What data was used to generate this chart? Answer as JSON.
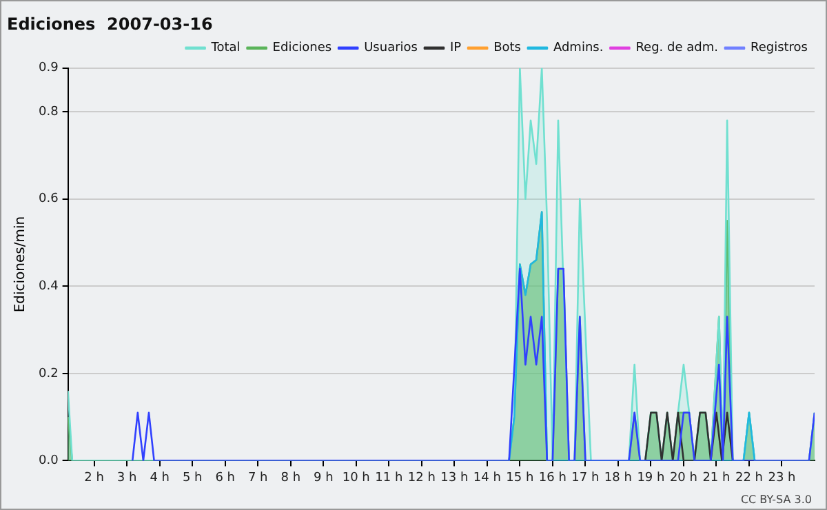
{
  "chart_data": {
    "type": "line",
    "title": "Ediciones  2007-03-16",
    "ylabel": "Ediciones/min",
    "xlim": [
      1.2,
      24
    ],
    "xticks": [
      {
        "value": 2,
        "label": "2 h"
      },
      {
        "value": 3,
        "label": "3 h"
      },
      {
        "value": 4,
        "label": "4 h"
      },
      {
        "value": 5,
        "label": "5 h"
      },
      {
        "value": 6,
        "label": "6 h"
      },
      {
        "value": 7,
        "label": "7 h"
      },
      {
        "value": 8,
        "label": "8 h"
      },
      {
        "value": 9,
        "label": "9 h"
      },
      {
        "value": 10,
        "label": "10 h"
      },
      {
        "value": 11,
        "label": "11 h"
      },
      {
        "value": 12,
        "label": "12 h"
      },
      {
        "value": 13,
        "label": "13 h"
      },
      {
        "value": 14,
        "label": "14 h"
      },
      {
        "value": 15,
        "label": "15 h"
      },
      {
        "value": 16,
        "label": "16 h"
      },
      {
        "value": 17,
        "label": "17 h"
      },
      {
        "value": 18,
        "label": "18 h"
      },
      {
        "value": 19,
        "label": "19 h"
      },
      {
        "value": 20,
        "label": "20 h"
      },
      {
        "value": 21,
        "label": "21 h"
      },
      {
        "value": 22,
        "label": "22 h"
      },
      {
        "value": 23,
        "label": "23 h"
      }
    ],
    "ylim": [
      0,
      0.9
    ],
    "yticks": [
      {
        "value": 0,
        "label": "0.0"
      },
      0.2,
      0.4,
      0.6,
      0.8,
      0.9
    ],
    "grid": "y",
    "legend": "top right",
    "marker": "none",
    "line_style": "solid",
    "annotations": [
      "CC BY-SA 3.0"
    ],
    "series": [
      {
        "name": "Total",
        "type": "area",
        "color": "#70e0d0",
        "x": [
          1.2,
          1.33,
          14.67,
          14.83,
          15.0,
          15.17,
          15.33,
          15.5,
          15.67,
          15.83,
          16.0,
          16.17,
          16.5,
          16.67,
          16.83,
          17.17,
          18.33,
          18.5,
          18.67,
          18.83,
          19.0,
          19.17,
          19.33,
          19.5,
          19.67,
          19.83,
          20.0,
          20.17,
          20.33,
          20.5,
          20.67,
          20.83,
          21.08,
          21.2,
          21.33,
          21.5,
          21.83,
          22.0,
          22.17,
          23.83,
          24.0
        ],
        "values": [
          0.16,
          0,
          0,
          0.1,
          0.9,
          0.6,
          0.78,
          0.68,
          0.9,
          0.55,
          0,
          0.78,
          0,
          0,
          0.6,
          0,
          0,
          0.22,
          0,
          0,
          0.11,
          0.11,
          0,
          0.11,
          0,
          0.11,
          0.22,
          0.11,
          0,
          0.11,
          0.11,
          0,
          0.33,
          0,
          0.78,
          0,
          0,
          0.11,
          0,
          0,
          0.11
        ]
      },
      {
        "name": "Ediciones",
        "type": "area",
        "color": "#5ab45a",
        "x": [
          1.2,
          1.33,
          14.67,
          14.83,
          15.0,
          15.17,
          15.33,
          15.5,
          15.67,
          15.83,
          16.0,
          16.17,
          16.33,
          16.5,
          16.67,
          16.83,
          17.0,
          18.33,
          18.5,
          18.67,
          18.83,
          19.0,
          19.17,
          19.33,
          19.5,
          19.67,
          19.83,
          20.0,
          20.17,
          20.33,
          20.5,
          20.67,
          20.83,
          21.08,
          21.2,
          21.33,
          21.5,
          21.83,
          22.0,
          22.17,
          23.83,
          24.0
        ],
        "values": [
          0.1,
          0,
          0,
          0.1,
          0.45,
          0.38,
          0.45,
          0.46,
          0.57,
          0,
          0,
          0.44,
          0.44,
          0,
          0,
          0.33,
          0,
          0,
          0.11,
          0,
          0,
          0.11,
          0.11,
          0,
          0.11,
          0,
          0.11,
          0.11,
          0.11,
          0,
          0.11,
          0.11,
          0,
          0.33,
          0,
          0.55,
          0,
          0,
          0.11,
          0,
          0,
          0.11
        ]
      },
      {
        "name": "Usuarios",
        "type": "line",
        "color": "#3040ff",
        "x": [
          3.17,
          3.33,
          3.5,
          3.67,
          3.83,
          14.67,
          15.0,
          15.17,
          15.33,
          15.5,
          15.67,
          15.83,
          16.0,
          16.17,
          16.33,
          16.5,
          16.67,
          16.83,
          17.0,
          18.33,
          18.5,
          18.67,
          19.83,
          20.0,
          20.17,
          20.33,
          20.83,
          21.08,
          21.2,
          21.33,
          21.5,
          23.83,
          24.0
        ],
        "values": [
          0,
          0.11,
          0,
          0.11,
          0,
          0,
          0.44,
          0.22,
          0.33,
          0.22,
          0.33,
          0,
          0,
          0.44,
          0.44,
          0,
          0,
          0.33,
          0,
          0,
          0.11,
          0,
          0,
          0.11,
          0.11,
          0,
          0,
          0.22,
          0,
          0.33,
          0,
          0,
          0.11
        ]
      },
      {
        "name": "IP",
        "type": "line",
        "color": "#303030",
        "x": [
          18.83,
          19.0,
          19.17,
          19.33,
          19.5,
          19.67,
          19.83,
          20.0,
          20.33,
          20.5,
          20.67,
          20.83,
          21.0,
          21.17,
          21.33,
          21.5
        ],
        "values": [
          0,
          0.11,
          0.11,
          0,
          0.11,
          0,
          0.11,
          0,
          0,
          0.11,
          0.11,
          0,
          0.11,
          0,
          0.11,
          0
        ]
      },
      {
        "name": "Bots",
        "type": "line",
        "color": "#ffa030"
      },
      {
        "name": "Admins.",
        "type": "line",
        "color": "#20b8e0",
        "x": [
          14.67,
          14.83,
          15.0,
          15.17,
          15.33,
          15.5,
          15.67,
          15.83,
          21.83,
          22.0,
          22.17
        ],
        "values": [
          0,
          0.1,
          0.45,
          0.38,
          0.45,
          0.46,
          0.57,
          0,
          0,
          0.11,
          0
        ]
      },
      {
        "name": "Reg. de adm.",
        "type": "line",
        "color": "#e040e0"
      },
      {
        "name": "Registros",
        "type": "line",
        "color": "#7080ff"
      }
    ]
  }
}
